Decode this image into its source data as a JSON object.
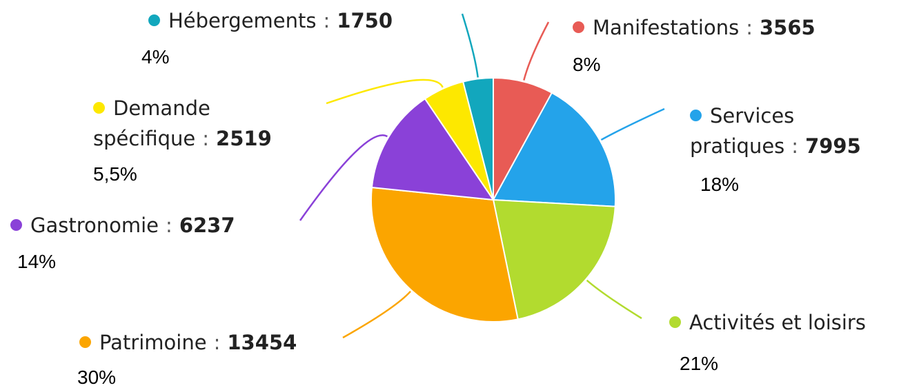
{
  "chart_data": {
    "type": "pie",
    "categories": [
      "Manifestations",
      "Services pratiques",
      "Activités et loisirs",
      "Patrimoine",
      "Gastronomie",
      "Demande spécifique",
      "Hébergements"
    ],
    "counts": [
      3565,
      7995,
      null,
      13454,
      6237,
      2519,
      1750
    ],
    "separator": ":",
    "values": [
      8,
      18,
      21,
      30,
      14,
      5.5,
      4
    ],
    "value_labels": [
      "8%",
      "18%",
      "21%",
      "30%",
      "14%",
      "5,5%",
      "4%"
    ],
    "colors": [
      "#e85b55",
      "#24a3ea",
      "#b2db2f",
      "#fba500",
      "#8a41d8",
      "#fde800",
      "#12a7bd"
    ]
  }
}
